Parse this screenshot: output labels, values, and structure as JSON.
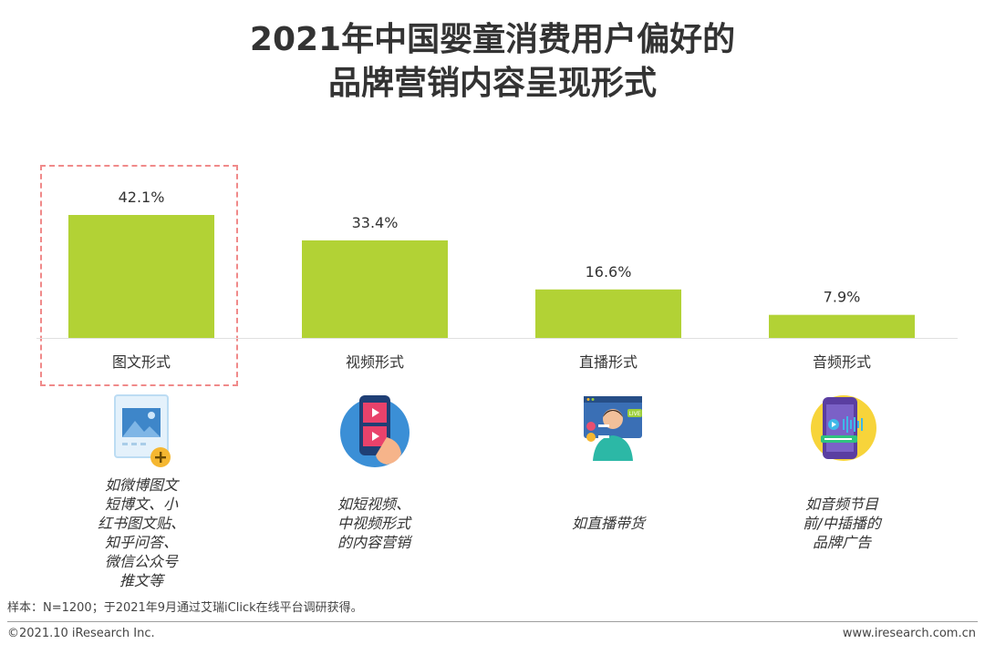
{
  "title": {
    "line1": "2021年中国婴童消费用户偏好的",
    "line2": "品牌营销内容呈现形式"
  },
  "colors": {
    "bar": "#b2d235",
    "highlight_border": "#f08a8a",
    "text": "#333333"
  },
  "chart_data": {
    "type": "bar",
    "categories": [
      "图文形式",
      "视频形式",
      "直播形式",
      "音频形式"
    ],
    "values": [
      42.1,
      33.4,
      16.6,
      7.9
    ],
    "value_labels": [
      "42.1%",
      "33.4%",
      "16.6%",
      "7.9%"
    ],
    "unit": "%",
    "ylim": [
      0,
      45
    ],
    "grid": false,
    "highlighted_category": "图文形式"
  },
  "formats": [
    {
      "icon": "image-post-icon",
      "description_lines": [
        "如微博图文",
        "短博文、小",
        "红书图文贴、",
        "知乎问答、",
        "微信公众号",
        "推文等"
      ]
    },
    {
      "icon": "video-phone-icon",
      "description_lines": [
        "如短视频、",
        "中视频形式",
        "的内容营销"
      ]
    },
    {
      "icon": "live-stream-icon",
      "description_lines": [
        "如直播带货"
      ]
    },
    {
      "icon": "audio-phone-icon",
      "description_lines": [
        "如音频节目",
        "前/中插播的",
        "品牌广告"
      ]
    }
  ],
  "note": "样本：N=1200；于2021年9月通过艾瑞iClick在线平台调研获得。",
  "footer": {
    "copyright": "©2021.10 iResearch Inc.",
    "website": "www.iresearch.com.cn"
  }
}
